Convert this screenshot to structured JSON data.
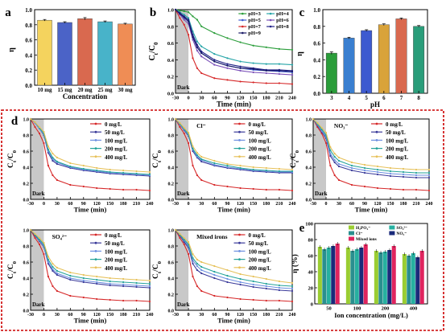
{
  "panel_letters": [
    "a",
    "b",
    "c",
    "d",
    "e"
  ],
  "colors": {
    "ppm0": "#d62728",
    "ppm50": "#3a3a9a",
    "ppm100": "#6d8fe0",
    "ppm200": "#25a39a",
    "ppm400": "#e6c15a",
    "frame": "#cc0000",
    "dark_band": "#c8c8c8"
  },
  "chart_data": [
    {
      "id": "a",
      "type": "bar",
      "panel_label": "a",
      "categories": [
        "10 mg",
        "15 mg",
        "20 mg",
        "25 mg",
        "30 mg"
      ],
      "values": [
        0.86,
        0.83,
        0.88,
        0.84,
        0.81
      ],
      "errors": [
        0.01,
        0.01,
        0.015,
        0.01,
        0.01
      ],
      "colors": [
        "#f4d35e",
        "#4b63c7",
        "#d9694f",
        "#48b3c9",
        "#ef8d55"
      ],
      "xlabel": "Concentration",
      "ylabel": "η",
      "ylim": [
        0.0,
        1.0
      ],
      "yticks": [
        "0.0",
        "0.2",
        "0.4",
        "0.6",
        "0.8",
        "1.0"
      ]
    },
    {
      "id": "b",
      "type": "line",
      "panel_label": "b",
      "xlabel": "Time (min)",
      "ylabel": "C_t/C_0",
      "xlim": [
        -30,
        240
      ],
      "ylim": [
        0.0,
        1.0
      ],
      "xticks": [
        -30,
        0,
        30,
        60,
        90,
        120,
        150,
        180,
        210,
        240
      ],
      "yticks": [
        "0.0",
        "0.2",
        "0.4",
        "0.6",
        "0.8",
        "1.0"
      ],
      "dark_label": "Dark",
      "x": [
        -30,
        -20,
        -10,
        0,
        10,
        20,
        30,
        60,
        90,
        120,
        150,
        180,
        210,
        240
      ],
      "series": [
        {
          "name": "pH=3",
          "color": "#2a9d3a",
          "values": [
            1.0,
            0.99,
            0.98,
            0.97,
            0.92,
            0.88,
            0.8,
            0.72,
            0.66,
            0.61,
            0.57,
            0.55,
            0.53,
            0.52
          ]
        },
        {
          "name": "pH=4",
          "color": "#27a5a8",
          "values": [
            1.0,
            0.97,
            0.94,
            0.9,
            0.74,
            0.62,
            0.56,
            0.47,
            0.42,
            0.38,
            0.36,
            0.35,
            0.35,
            0.34
          ]
        },
        {
          "name": "pH=5",
          "color": "#3d5ad0",
          "values": [
            1.0,
            0.95,
            0.9,
            0.86,
            0.68,
            0.55,
            0.48,
            0.38,
            0.33,
            0.3,
            0.28,
            0.27,
            0.26,
            0.25
          ]
        },
        {
          "name": "pH=6",
          "color": "#7a4fb8",
          "values": [
            1.0,
            0.94,
            0.88,
            0.83,
            0.64,
            0.51,
            0.44,
            0.34,
            0.3,
            0.27,
            0.25,
            0.24,
            0.23,
            0.22
          ]
        },
        {
          "name": "pH=7",
          "color": "#d62728",
          "values": [
            1.0,
            0.9,
            0.82,
            0.7,
            0.42,
            0.3,
            0.24,
            0.18,
            0.16,
            0.14,
            0.13,
            0.12,
            0.12,
            0.11
          ]
        },
        {
          "name": "pH=8",
          "color": "#222288",
          "values": [
            1.0,
            0.96,
            0.92,
            0.88,
            0.7,
            0.58,
            0.5,
            0.4,
            0.35,
            0.32,
            0.3,
            0.28,
            0.28,
            0.27
          ]
        },
        {
          "name": "pH=9",
          "color": "#1a1a66",
          "values": [
            1.0,
            0.95,
            0.91,
            0.86,
            0.67,
            0.55,
            0.48,
            0.38,
            0.33,
            0.3,
            0.29,
            0.27,
            0.27,
            0.26
          ]
        }
      ]
    },
    {
      "id": "c",
      "type": "bar",
      "panel_label": "c",
      "categories": [
        "3",
        "4",
        "5",
        "6",
        "7",
        "8"
      ],
      "values": [
        0.48,
        0.66,
        0.75,
        0.82,
        0.89,
        0.8
      ],
      "errors": [
        0.015,
        0.01,
        0.01,
        0.01,
        0.01,
        0.01
      ],
      "colors": [
        "#2a9d3a",
        "#3a7fd0",
        "#3d5ad0",
        "#d9a33a",
        "#d9694f",
        "#2a9d7a"
      ],
      "xlabel": "pH",
      "ylabel": "η",
      "ylim": [
        0.0,
        1.0
      ],
      "yticks": [
        "0.0",
        "0.2",
        "0.4",
        "0.6",
        "0.8",
        "1.0"
      ]
    },
    {
      "id": "d1",
      "type": "line",
      "panel_label": "d",
      "ion_label": "",
      "xlabel": "Time (min)",
      "ylabel": "C_t/C_0",
      "xlim": [
        -30,
        240
      ],
      "ylim": [
        0.0,
        1.0
      ],
      "xticks": [
        -30,
        0,
        30,
        60,
        90,
        120,
        150,
        180,
        210,
        240
      ],
      "yticks": [
        "0.0",
        "0.2",
        "0.4",
        "0.6",
        "0.8",
        "1.0"
      ],
      "dark_label": "Dark",
      "x": [
        -30,
        -20,
        -10,
        0,
        10,
        20,
        30,
        60,
        90,
        120,
        150,
        180,
        210,
        240
      ],
      "series": [
        {
          "name": "0 mg/L",
          "values": [
            1.0,
            0.9,
            0.82,
            0.7,
            0.42,
            0.3,
            0.24,
            0.18,
            0.16,
            0.14,
            0.13,
            0.12,
            0.12,
            0.11
          ]
        },
        {
          "name": "50 mg/L",
          "values": [
            1.0,
            0.95,
            0.88,
            0.8,
            0.58,
            0.48,
            0.44,
            0.39,
            0.36,
            0.34,
            0.32,
            0.31,
            0.3,
            0.29
          ]
        },
        {
          "name": "100 mg/L",
          "values": [
            1.0,
            0.95,
            0.88,
            0.81,
            0.6,
            0.5,
            0.46,
            0.4,
            0.37,
            0.35,
            0.33,
            0.32,
            0.31,
            0.3
          ]
        },
        {
          "name": "200 mg/L",
          "values": [
            1.0,
            0.96,
            0.89,
            0.82,
            0.62,
            0.52,
            0.47,
            0.41,
            0.38,
            0.36,
            0.34,
            0.33,
            0.32,
            0.31
          ]
        },
        {
          "name": "400 mg/L",
          "values": [
            1.0,
            0.96,
            0.9,
            0.84,
            0.66,
            0.57,
            0.52,
            0.45,
            0.42,
            0.39,
            0.37,
            0.36,
            0.35,
            0.34
          ]
        }
      ]
    },
    {
      "id": "d2",
      "type": "line",
      "panel_label": "",
      "ion_label": "Cl⁻",
      "xlabel": "Time (min)",
      "ylabel": "C_t/C_0",
      "xlim": [
        -30,
        240
      ],
      "ylim": [
        0.0,
        1.0
      ],
      "xticks": [
        -30,
        0,
        30,
        60,
        90,
        120,
        150,
        180,
        210,
        240
      ],
      "yticks": [
        "0.0",
        "0.2",
        "0.4",
        "0.6",
        "0.8",
        "1.0"
      ],
      "dark_label": "Dark",
      "x": [
        -30,
        -20,
        -10,
        0,
        10,
        20,
        30,
        60,
        90,
        120,
        150,
        180,
        210,
        240
      ],
      "series": [
        {
          "name": "0 mg/L",
          "values": [
            1.0,
            0.9,
            0.82,
            0.7,
            0.42,
            0.3,
            0.24,
            0.18,
            0.16,
            0.14,
            0.13,
            0.12,
            0.12,
            0.11
          ]
        },
        {
          "name": "50 mg/L",
          "values": [
            1.0,
            0.93,
            0.86,
            0.79,
            0.6,
            0.52,
            0.47,
            0.42,
            0.39,
            0.37,
            0.35,
            0.34,
            0.33,
            0.33
          ]
        },
        {
          "name": "100 mg/L",
          "values": [
            1.0,
            0.93,
            0.87,
            0.8,
            0.62,
            0.53,
            0.49,
            0.43,
            0.4,
            0.38,
            0.36,
            0.35,
            0.34,
            0.34
          ]
        },
        {
          "name": "200 mg/L",
          "values": [
            1.0,
            0.94,
            0.88,
            0.81,
            0.63,
            0.55,
            0.5,
            0.45,
            0.42,
            0.39,
            0.37,
            0.36,
            0.35,
            0.35
          ]
        },
        {
          "name": "400 mg/L",
          "values": [
            1.0,
            0.95,
            0.89,
            0.83,
            0.66,
            0.58,
            0.53,
            0.48,
            0.44,
            0.42,
            0.4,
            0.39,
            0.38,
            0.37
          ]
        }
      ]
    },
    {
      "id": "d3",
      "type": "line",
      "panel_label": "",
      "ion_label": "NO₃⁻",
      "xlabel": "Time (min)",
      "ylabel": "C_t/C_0",
      "xlim": [
        -30,
        240
      ],
      "ylim": [
        0.0,
        1.0
      ],
      "xticks": [
        -30,
        0,
        30,
        60,
        90,
        120,
        150,
        180,
        210,
        240
      ],
      "yticks": [
        "0.0",
        "0.2",
        "0.4",
        "0.6",
        "0.8",
        "1.0"
      ],
      "dark_label": "Dark",
      "x": [
        -30,
        -20,
        -10,
        0,
        10,
        20,
        30,
        60,
        90,
        120,
        150,
        180,
        210,
        240
      ],
      "series": [
        {
          "name": "0 mg/L",
          "values": [
            1.0,
            0.9,
            0.82,
            0.7,
            0.42,
            0.3,
            0.24,
            0.18,
            0.16,
            0.14,
            0.13,
            0.12,
            0.12,
            0.11
          ]
        },
        {
          "name": "50 mg/L",
          "values": [
            1.0,
            0.92,
            0.84,
            0.76,
            0.54,
            0.46,
            0.41,
            0.36,
            0.33,
            0.31,
            0.29,
            0.28,
            0.27,
            0.27
          ]
        },
        {
          "name": "100 mg/L",
          "values": [
            1.0,
            0.93,
            0.85,
            0.78,
            0.57,
            0.49,
            0.44,
            0.39,
            0.36,
            0.34,
            0.32,
            0.31,
            0.3,
            0.3
          ]
        },
        {
          "name": "200 mg/L",
          "values": [
            1.0,
            0.94,
            0.87,
            0.8,
            0.61,
            0.53,
            0.48,
            0.42,
            0.39,
            0.37,
            0.35,
            0.34,
            0.33,
            0.33
          ]
        },
        {
          "name": "400 mg/L",
          "values": [
            1.0,
            0.95,
            0.89,
            0.83,
            0.65,
            0.57,
            0.52,
            0.46,
            0.43,
            0.41,
            0.39,
            0.38,
            0.37,
            0.37
          ]
        }
      ]
    },
    {
      "id": "d4",
      "type": "line",
      "panel_label": "",
      "ion_label": "SO₄²⁻",
      "xlabel": "Time (min)",
      "ylabel": "C_t/C_0",
      "xlim": [
        -30,
        240
      ],
      "ylim": [
        0.0,
        1.0
      ],
      "xticks": [
        -30,
        0,
        30,
        60,
        90,
        120,
        150,
        180,
        210,
        240
      ],
      "yticks": [
        "0.0",
        "0.2",
        "0.4",
        "0.6",
        "0.8",
        "1.0"
      ],
      "dark_label": "Dark",
      "x": [
        -30,
        -20,
        -10,
        0,
        10,
        20,
        30,
        60,
        90,
        120,
        150,
        180,
        210,
        240
      ],
      "series": [
        {
          "name": "0 mg/L",
          "values": [
            1.0,
            0.9,
            0.82,
            0.7,
            0.42,
            0.3,
            0.24,
            0.18,
            0.16,
            0.14,
            0.13,
            0.12,
            0.12,
            0.11
          ]
        },
        {
          "name": "50 mg/L",
          "values": [
            1.0,
            0.93,
            0.86,
            0.79,
            0.58,
            0.49,
            0.44,
            0.38,
            0.35,
            0.33,
            0.31,
            0.3,
            0.29,
            0.28
          ]
        },
        {
          "name": "100 mg/L",
          "values": [
            1.0,
            0.94,
            0.87,
            0.8,
            0.6,
            0.51,
            0.46,
            0.4,
            0.37,
            0.35,
            0.33,
            0.32,
            0.31,
            0.3
          ]
        },
        {
          "name": "200 mg/L",
          "values": [
            1.0,
            0.94,
            0.88,
            0.82,
            0.63,
            0.54,
            0.49,
            0.43,
            0.4,
            0.38,
            0.36,
            0.35,
            0.34,
            0.33
          ]
        },
        {
          "name": "400 mg/L",
          "values": [
            1.0,
            0.95,
            0.9,
            0.84,
            0.67,
            0.58,
            0.53,
            0.47,
            0.44,
            0.42,
            0.4,
            0.39,
            0.38,
            0.37
          ]
        }
      ]
    },
    {
      "id": "d5",
      "type": "line",
      "panel_label": "",
      "ion_label": "Mixed irons",
      "xlabel": "Time (min)",
      "ylabel": "C_t/C_0",
      "xlim": [
        -30,
        240
      ],
      "ylim": [
        0.0,
        1.0
      ],
      "xticks": [
        -30,
        0,
        30,
        60,
        90,
        120,
        150,
        180,
        210,
        240
      ],
      "yticks": [
        "0.0",
        "0.2",
        "0.4",
        "0.6",
        "0.8",
        "1.0"
      ],
      "dark_label": "Dark",
      "x": [
        -30,
        -20,
        -10,
        0,
        10,
        20,
        30,
        60,
        90,
        120,
        150,
        180,
        210,
        240
      ],
      "series": [
        {
          "name": "0 mg/L",
          "values": [
            1.0,
            0.9,
            0.82,
            0.7,
            0.42,
            0.3,
            0.24,
            0.18,
            0.16,
            0.14,
            0.13,
            0.12,
            0.12,
            0.11
          ]
        },
        {
          "name": "50 mg/L",
          "values": [
            1.0,
            0.93,
            0.85,
            0.78,
            0.58,
            0.5,
            0.46,
            0.4,
            0.35,
            0.32,
            0.29,
            0.27,
            0.25,
            0.24
          ]
        },
        {
          "name": "100 mg/L",
          "values": [
            1.0,
            0.94,
            0.87,
            0.8,
            0.62,
            0.55,
            0.5,
            0.44,
            0.39,
            0.35,
            0.32,
            0.3,
            0.28,
            0.27
          ]
        },
        {
          "name": "200 mg/L",
          "values": [
            1.0,
            0.94,
            0.88,
            0.82,
            0.65,
            0.58,
            0.54,
            0.48,
            0.43,
            0.39,
            0.36,
            0.33,
            0.31,
            0.3
          ]
        },
        {
          "name": "400 mg/L",
          "values": [
            1.0,
            0.95,
            0.9,
            0.85,
            0.7,
            0.63,
            0.6,
            0.55,
            0.5,
            0.45,
            0.42,
            0.39,
            0.36,
            0.34
          ]
        }
      ]
    },
    {
      "id": "e",
      "type": "bar",
      "panel_label": "e",
      "categories": [
        "50",
        "100",
        "200",
        "400"
      ],
      "xlabel": "Ion concentration (mg/L)",
      "ylabel": "η (%)",
      "ylim": [
        0,
        100
      ],
      "yticks": [
        "0",
        "20",
        "40",
        "60",
        "80",
        "100"
      ],
      "series": [
        {
          "name": "H₂PO₄⁻",
          "color": "#9acd32",
          "values": [
            71,
            70,
            66,
            62
          ]
        },
        {
          "name": "Cl⁻",
          "color": "#2a8f8f",
          "values": [
            68,
            66,
            64,
            60
          ]
        },
        {
          "name": "SO₄²⁻",
          "color": "#26b0a0",
          "values": [
            70,
            68,
            65,
            63
          ]
        },
        {
          "name": "NO₃⁻",
          "color": "#1a2a7a",
          "values": [
            72,
            70,
            67,
            58
          ]
        },
        {
          "name": "Mixed ions",
          "color": "#e0245e",
          "values": [
            75,
            74,
            72,
            66
          ]
        }
      ]
    }
  ]
}
